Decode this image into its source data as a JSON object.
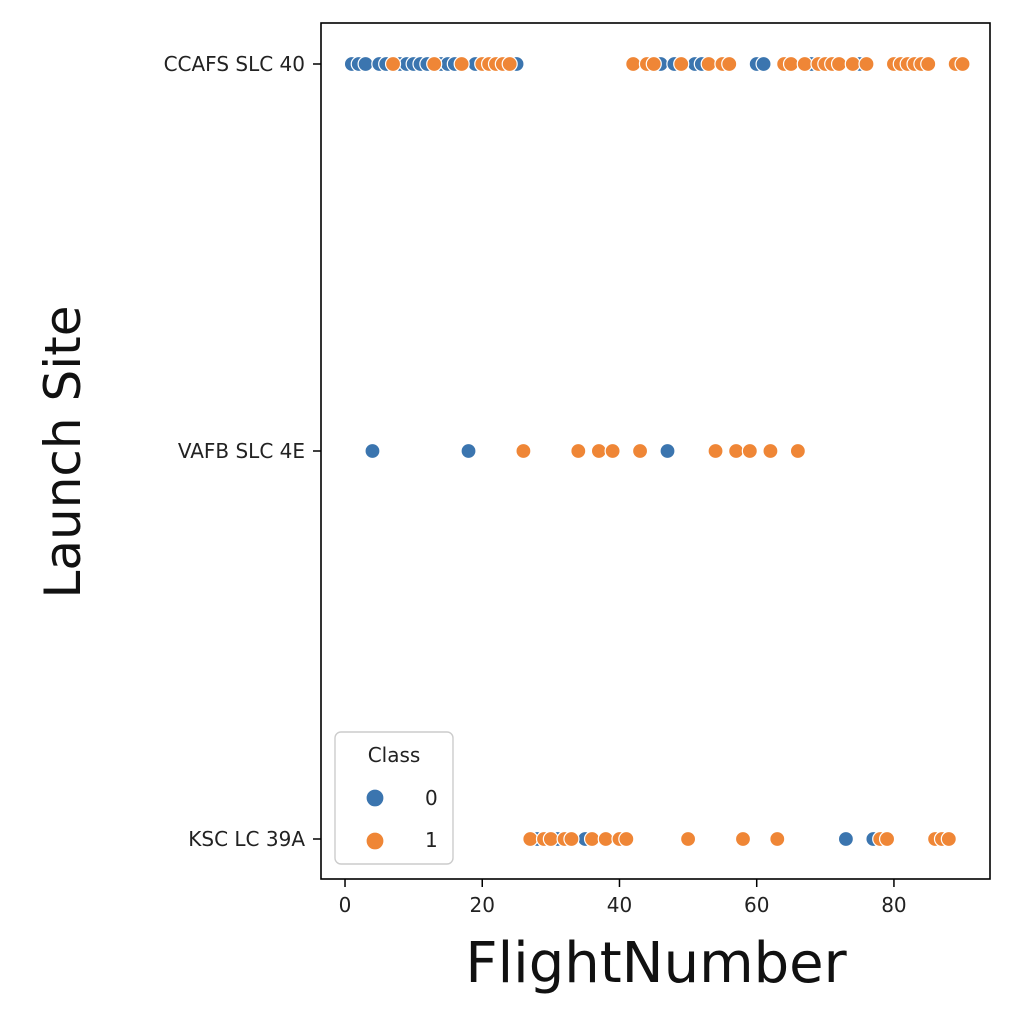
{
  "chart_data": {
    "type": "scatter",
    "title": "",
    "xlabel": "FlightNumber",
    "ylabel": "Launch Site",
    "xlim": [
      -3.5,
      94
    ],
    "x_ticks": [
      0,
      20,
      40,
      60,
      80
    ],
    "y_categories": [
      "CCAFS SLC 40",
      "VAFB SLC 4E",
      "KSC LC 39A"
    ],
    "grid": false,
    "legend": {
      "title": "Class",
      "placement": "lower-left",
      "entries": [
        "0",
        "1"
      ]
    },
    "colors": {
      "0": "#3b75af",
      "1": "#ef8636"
    },
    "series": [
      {
        "name": "0",
        "points": [
          {
            "x": 1,
            "y": "CCAFS SLC 40"
          },
          {
            "x": 2,
            "y": "CCAFS SLC 40"
          },
          {
            "x": 3,
            "y": "CCAFS SLC 40"
          },
          {
            "x": 5,
            "y": "CCAFS SLC 40"
          },
          {
            "x": 6,
            "y": "CCAFS SLC 40"
          },
          {
            "x": 8,
            "y": "CCAFS SLC 40"
          },
          {
            "x": 9,
            "y": "CCAFS SLC 40"
          },
          {
            "x": 10,
            "y": "CCAFS SLC 40"
          },
          {
            "x": 11,
            "y": "CCAFS SLC 40"
          },
          {
            "x": 12,
            "y": "CCAFS SLC 40"
          },
          {
            "x": 14,
            "y": "CCAFS SLC 40"
          },
          {
            "x": 15,
            "y": "CCAFS SLC 40"
          },
          {
            "x": 16,
            "y": "CCAFS SLC 40"
          },
          {
            "x": 19,
            "y": "CCAFS SLC 40"
          },
          {
            "x": 25,
            "y": "CCAFS SLC 40"
          },
          {
            "x": 46,
            "y": "CCAFS SLC 40"
          },
          {
            "x": 48,
            "y": "CCAFS SLC 40"
          },
          {
            "x": 51,
            "y": "CCAFS SLC 40"
          },
          {
            "x": 52,
            "y": "CCAFS SLC 40"
          },
          {
            "x": 60,
            "y": "CCAFS SLC 40"
          },
          {
            "x": 61,
            "y": "CCAFS SLC 40"
          },
          {
            "x": 68,
            "y": "CCAFS SLC 40"
          },
          {
            "x": 75,
            "y": "CCAFS SLC 40"
          },
          {
            "x": 4,
            "y": "VAFB SLC 4E"
          },
          {
            "x": 18,
            "y": "VAFB SLC 4E"
          },
          {
            "x": 47,
            "y": "VAFB SLC 4E"
          },
          {
            "x": 28,
            "y": "KSC LC 39A"
          },
          {
            "x": 31,
            "y": "KSC LC 39A"
          },
          {
            "x": 35,
            "y": "KSC LC 39A"
          },
          {
            "x": 73,
            "y": "KSC LC 39A"
          },
          {
            "x": 77,
            "y": "KSC LC 39A"
          }
        ]
      },
      {
        "name": "1",
        "points": [
          {
            "x": 7,
            "y": "CCAFS SLC 40"
          },
          {
            "x": 13,
            "y": "CCAFS SLC 40"
          },
          {
            "x": 17,
            "y": "CCAFS SLC 40"
          },
          {
            "x": 20,
            "y": "CCAFS SLC 40"
          },
          {
            "x": 21,
            "y": "CCAFS SLC 40"
          },
          {
            "x": 22,
            "y": "CCAFS SLC 40"
          },
          {
            "x": 23,
            "y": "CCAFS SLC 40"
          },
          {
            "x": 24,
            "y": "CCAFS SLC 40"
          },
          {
            "x": 42,
            "y": "CCAFS SLC 40"
          },
          {
            "x": 44,
            "y": "CCAFS SLC 40"
          },
          {
            "x": 45,
            "y": "CCAFS SLC 40"
          },
          {
            "x": 49,
            "y": "CCAFS SLC 40"
          },
          {
            "x": 53,
            "y": "CCAFS SLC 40"
          },
          {
            "x": 55,
            "y": "CCAFS SLC 40"
          },
          {
            "x": 56,
            "y": "CCAFS SLC 40"
          },
          {
            "x": 64,
            "y": "CCAFS SLC 40"
          },
          {
            "x": 65,
            "y": "CCAFS SLC 40"
          },
          {
            "x": 67,
            "y": "CCAFS SLC 40"
          },
          {
            "x": 69,
            "y": "CCAFS SLC 40"
          },
          {
            "x": 70,
            "y": "CCAFS SLC 40"
          },
          {
            "x": 71,
            "y": "CCAFS SLC 40"
          },
          {
            "x": 72,
            "y": "CCAFS SLC 40"
          },
          {
            "x": 74,
            "y": "CCAFS SLC 40"
          },
          {
            "x": 76,
            "y": "CCAFS SLC 40"
          },
          {
            "x": 80,
            "y": "CCAFS SLC 40"
          },
          {
            "x": 81,
            "y": "CCAFS SLC 40"
          },
          {
            "x": 82,
            "y": "CCAFS SLC 40"
          },
          {
            "x": 83,
            "y": "CCAFS SLC 40"
          },
          {
            "x": 84,
            "y": "CCAFS SLC 40"
          },
          {
            "x": 85,
            "y": "CCAFS SLC 40"
          },
          {
            "x": 89,
            "y": "CCAFS SLC 40"
          },
          {
            "x": 90,
            "y": "CCAFS SLC 40"
          },
          {
            "x": 26,
            "y": "VAFB SLC 4E"
          },
          {
            "x": 34,
            "y": "VAFB SLC 4E"
          },
          {
            "x": 37,
            "y": "VAFB SLC 4E"
          },
          {
            "x": 39,
            "y": "VAFB SLC 4E"
          },
          {
            "x": 43,
            "y": "VAFB SLC 4E"
          },
          {
            "x": 54,
            "y": "VAFB SLC 4E"
          },
          {
            "x": 57,
            "y": "VAFB SLC 4E"
          },
          {
            "x": 59,
            "y": "VAFB SLC 4E"
          },
          {
            "x": 62,
            "y": "VAFB SLC 4E"
          },
          {
            "x": 66,
            "y": "VAFB SLC 4E"
          },
          {
            "x": 27,
            "y": "KSC LC 39A"
          },
          {
            "x": 29,
            "y": "KSC LC 39A"
          },
          {
            "x": 30,
            "y": "KSC LC 39A"
          },
          {
            "x": 32,
            "y": "KSC LC 39A"
          },
          {
            "x": 33,
            "y": "KSC LC 39A"
          },
          {
            "x": 36,
            "y": "KSC LC 39A"
          },
          {
            "x": 38,
            "y": "KSC LC 39A"
          },
          {
            "x": 40,
            "y": "KSC LC 39A"
          },
          {
            "x": 41,
            "y": "KSC LC 39A"
          },
          {
            "x": 50,
            "y": "KSC LC 39A"
          },
          {
            "x": 58,
            "y": "KSC LC 39A"
          },
          {
            "x": 63,
            "y": "KSC LC 39A"
          },
          {
            "x": 78,
            "y": "KSC LC 39A"
          },
          {
            "x": 79,
            "y": "KSC LC 39A"
          },
          {
            "x": 86,
            "y": "KSC LC 39A"
          },
          {
            "x": 87,
            "y": "KSC LC 39A"
          },
          {
            "x": 88,
            "y": "KSC LC 39A"
          }
        ]
      }
    ]
  }
}
